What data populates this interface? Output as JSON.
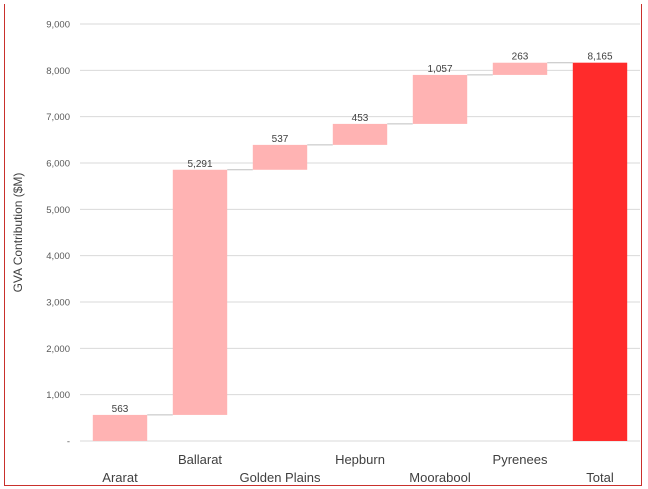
{
  "chart_data": {
    "type": "bar",
    "subtype": "waterfall",
    "title": "",
    "xlabel": "",
    "ylabel": "GVA Contribution ($M)",
    "ylim": [
      0,
      9000
    ],
    "yticks": [
      0,
      1000,
      2000,
      3000,
      4000,
      5000,
      6000,
      7000,
      8000,
      9000
    ],
    "ytick_labels": [
      "-",
      "1,000",
      "2,000",
      "3,000",
      "4,000",
      "5,000",
      "6,000",
      "7,000",
      "8,000",
      "9,000"
    ],
    "categories": [
      "Ararat",
      "Ballarat",
      "Golden Plains",
      "Hepburn",
      "Moorabool",
      "Pyrenees",
      "Total"
    ],
    "values": [
      563,
      5291,
      537,
      453,
      1057,
      263,
      8165
    ],
    "value_labels": [
      "563",
      "5,291",
      "537",
      "453",
      "1,057",
      "263",
      "8,165"
    ],
    "is_total": [
      false,
      false,
      false,
      false,
      false,
      false,
      true
    ],
    "grid": true,
    "colors": {
      "increment": "#ffb3b3",
      "total": "#ff2b2b",
      "grid": "#d9d9d9",
      "connector": "#bfbfbf",
      "border": "#c9302c"
    }
  }
}
